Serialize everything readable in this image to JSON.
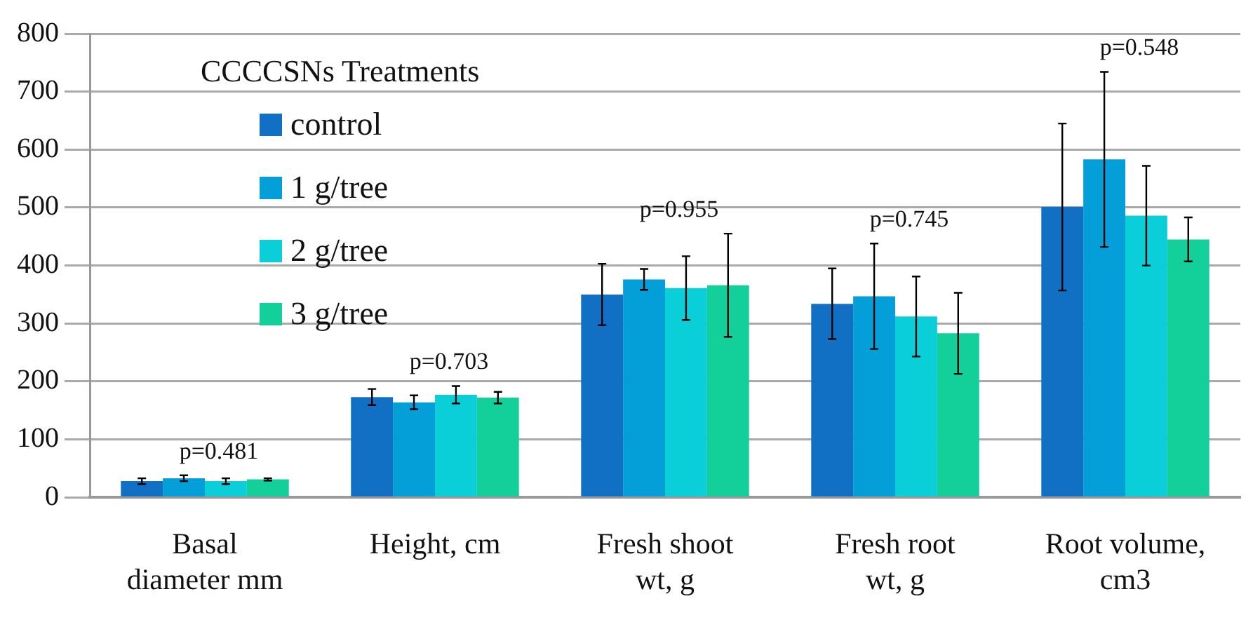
{
  "chart_data": {
    "type": "bar",
    "categories": [
      "Basal diameter mm",
      "Height, cm",
      "Fresh shoot wt, g",
      "Fresh root wt, g",
      "Root volume, cm3"
    ],
    "legend_title": "CCCCSNs Treatments",
    "series": [
      {
        "name": "control",
        "color": "#1170c4",
        "values": [
          28,
          173,
          350,
          334,
          501
        ],
        "errors": [
          5,
          14,
          53,
          61,
          144
        ]
      },
      {
        "name": "1 g/tree",
        "color": "#049fd9",
        "values": [
          33,
          164,
          376,
          347,
          583
        ],
        "errors": [
          5,
          12,
          18,
          91,
          151
        ]
      },
      {
        "name": "2 g/tree",
        "color": "#0bcfd8",
        "values": [
          28,
          177,
          361,
          312,
          486
        ],
        "errors": [
          5,
          15,
          55,
          69,
          86
        ]
      },
      {
        "name": "3 g/tree",
        "color": "#13cf9a",
        "values": [
          31,
          172,
          366,
          283,
          445
        ],
        "errors": [
          2,
          10,
          89,
          70,
          38
        ]
      }
    ],
    "annotations": [
      "p=0.481",
      "p=0.703",
      "p=0.955",
      "p=0.745",
      "p=0.548"
    ],
    "ylim": [
      0,
      800
    ],
    "yticks": [
      0,
      100,
      200,
      300,
      400,
      500,
      600,
      700,
      800
    ],
    "grid": "y",
    "legend": "top left"
  }
}
